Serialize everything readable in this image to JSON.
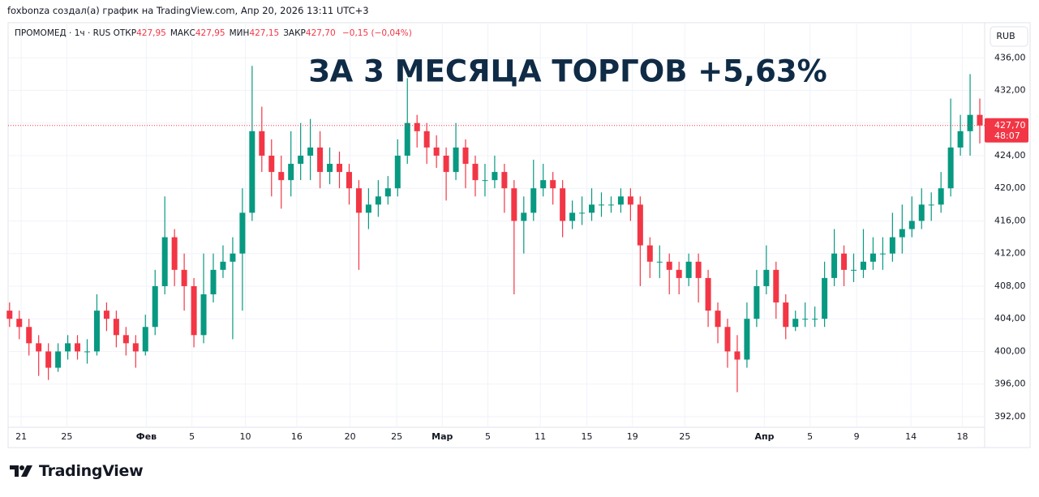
{
  "header": {
    "caption": "foxbonza создал(а) график на TradingView.com, Апр 20, 2026 13:11 UTC+3"
  },
  "chart_data": {
    "type": "candlestick",
    "title": "ЗА 3 МЕСЯЦА ТОРГОВ +5,63%",
    "symbol": "ПРОМОМЕД · 1ч · RUS",
    "ohlc_legend": [
      {
        "name": "ОТКР",
        "value": 427.95,
        "label": "427,95"
      },
      {
        "name": "МАКС",
        "value": 427.95,
        "label": "427,95"
      },
      {
        "name": "МИН",
        "value": 427.15,
        "label": "427,15"
      },
      {
        "name": "ЗАКР",
        "value": 427.7,
        "label": "427,70"
      }
    ],
    "change": {
      "value": -0.15,
      "label": "−0,15 (−0,04%)"
    },
    "currency": "RUB",
    "x": [
      0,
      1,
      2,
      3,
      4,
      5,
      6,
      7,
      8,
      9,
      10,
      11,
      12,
      13,
      14,
      15,
      16,
      17,
      18,
      19,
      20,
      21,
      22,
      23,
      24,
      25,
      26,
      27,
      28,
      29,
      30,
      31,
      32,
      33,
      34,
      35,
      36,
      37,
      38,
      39,
      40,
      41,
      42,
      43,
      44,
      45,
      46,
      47,
      48,
      49,
      50,
      51,
      52,
      53,
      54,
      55,
      56,
      57,
      58,
      59,
      60,
      61,
      62,
      63,
      64,
      65,
      66,
      67,
      68,
      69,
      70,
      71,
      72,
      73,
      74,
      75,
      76,
      77,
      78,
      79,
      80,
      81,
      82,
      83,
      84,
      85,
      86,
      87,
      88,
      89,
      90,
      91,
      92,
      93,
      94,
      95,
      96,
      97,
      98,
      99,
      100
    ],
    "open": [
      405,
      404,
      403,
      401,
      400,
      398,
      400,
      401,
      400,
      400,
      405,
      404,
      402,
      401,
      400,
      403,
      408,
      414,
      410,
      408,
      402,
      407,
      410,
      411,
      412,
      417,
      427,
      424,
      422,
      421,
      423,
      424,
      425,
      422,
      423,
      422,
      420,
      417,
      418,
      419,
      420,
      424,
      428,
      427,
      425,
      424,
      422,
      425,
      423,
      421,
      421,
      422,
      420,
      416,
      417,
      420,
      421,
      420,
      416,
      417,
      417,
      418,
      418,
      418,
      419,
      418,
      413,
      411,
      411,
      410,
      409,
      411,
      409,
      405,
      403,
      400,
      399,
      404,
      408,
      410,
      406,
      403,
      404,
      404,
      404,
      409,
      412,
      410,
      410,
      411,
      412,
      412,
      414,
      415,
      416,
      418,
      418,
      420,
      425,
      427,
      429
    ],
    "high": [
      406,
      405,
      404,
      402,
      401,
      401,
      402,
      402,
      401.5,
      407,
      406,
      405,
      403,
      402,
      404.5,
      410,
      419,
      415,
      412,
      409,
      412,
      412,
      413,
      414,
      420,
      435,
      430,
      426,
      424,
      427,
      428,
      428.5,
      427,
      425,
      424.5,
      423,
      421,
      420,
      421,
      421.5,
      426,
      433.5,
      429,
      428,
      426.5,
      425,
      428,
      426,
      424,
      423,
      424,
      423,
      421,
      419,
      423.5,
      423,
      422,
      421,
      418.5,
      419,
      420,
      419.5,
      419,
      420,
      420,
      419,
      414,
      413,
      412,
      411,
      412,
      412,
      410,
      406,
      404,
      402,
      406,
      410,
      413,
      411,
      407,
      405,
      406,
      405.5,
      411,
      415,
      413,
      412,
      415,
      414,
      414,
      417,
      418,
      419,
      420,
      419.5,
      422,
      431,
      429,
      434,
      431
    ],
    "low": [
      403,
      401.5,
      399.5,
      397,
      396.5,
      397.5,
      399,
      399,
      398.5,
      399.5,
      402.5,
      400.5,
      399.5,
      398,
      399.5,
      402,
      407,
      408,
      405,
      400.5,
      401,
      406,
      409,
      401.5,
      405,
      416,
      422,
      419,
      417.5,
      419,
      421,
      421,
      420,
      420.5,
      420,
      418,
      410,
      415,
      416.5,
      418,
      419,
      423,
      425,
      423,
      422.5,
      418.5,
      421,
      420,
      419,
      419,
      420,
      417,
      407,
      412,
      416,
      419,
      418,
      414,
      415,
      415.5,
      416,
      416.5,
      417,
      417,
      416,
      408,
      409,
      409,
      407,
      407,
      408,
      406,
      403,
      401,
      398,
      395,
      398,
      403,
      407,
      404,
      401.5,
      402.5,
      403,
      403,
      403,
      408,
      408,
      408.5,
      409,
      410,
      410,
      411,
      412,
      414,
      415,
      416,
      417,
      419,
      424,
      424,
      425.5
    ],
    "close": [
      404,
      403,
      401,
      400,
      398,
      400,
      401,
      400,
      400,
      405,
      404,
      402,
      401,
      400,
      403,
      408,
      414,
      410,
      408,
      402,
      407,
      410,
      411,
      412,
      417,
      427,
      424,
      422,
      421,
      423,
      424,
      425,
      422,
      423,
      422,
      420,
      417,
      418,
      419,
      420,
      424,
      428,
      427,
      425,
      424,
      422,
      425,
      423,
      421,
      421,
      422,
      420,
      416,
      417,
      420,
      421,
      420,
      416,
      417,
      417,
      418,
      418,
      418,
      419,
      418,
      413,
      411,
      411,
      410,
      409,
      411,
      409,
      405,
      403,
      400,
      399,
      404,
      408,
      410,
      406,
      403,
      404,
      404,
      404,
      409,
      412,
      410,
      410,
      411,
      412,
      412,
      414,
      415,
      416,
      418,
      418,
      420,
      425,
      427,
      429,
      427.7
    ],
    "up_color": "#089981",
    "down_color": "#f23645",
    "xlim": [
      -0.15,
      100.5
    ],
    "xticks": [
      {
        "value": 1.2,
        "label": "21"
      },
      {
        "value": 5.9,
        "label": "25"
      },
      {
        "value": 14.1,
        "label": "Фев"
      },
      {
        "value": 18.8,
        "label": "5"
      },
      {
        "value": 24.3,
        "label": "10"
      },
      {
        "value": 29.6,
        "label": "16"
      },
      {
        "value": 35.1,
        "label": "20"
      },
      {
        "value": 39.9,
        "label": "25"
      },
      {
        "value": 44.6,
        "label": "Мар"
      },
      {
        "value": 49.3,
        "label": "5"
      },
      {
        "value": 54.7,
        "label": "11"
      },
      {
        "value": 59.5,
        "label": "15"
      },
      {
        "value": 64.2,
        "label": "19"
      },
      {
        "value": 69.6,
        "label": "25"
      },
      {
        "value": 77.8,
        "label": "Апр"
      },
      {
        "value": 82.5,
        "label": "5"
      },
      {
        "value": 87.3,
        "label": "9"
      },
      {
        "value": 92.9,
        "label": "14"
      },
      {
        "value": 98.2,
        "label": "18"
      }
    ],
    "ylim": [
      390.9,
      440.1
    ],
    "yticks": [
      {
        "value": 392,
        "label": "392,00"
      },
      {
        "value": 396,
        "label": "396,00"
      },
      {
        "value": 400,
        "label": "400,00"
      },
      {
        "value": 404,
        "label": "404,00"
      },
      {
        "value": 408,
        "label": "408,00"
      },
      {
        "value": 412,
        "label": "412,00"
      },
      {
        "value": 416,
        "label": "416,00"
      },
      {
        "value": 420,
        "label": "420,00"
      },
      {
        "value": 424,
        "label": "424,00"
      },
      {
        "value": 428,
        "label": "428,00"
      },
      {
        "value": 432,
        "label": "432,00"
      },
      {
        "value": 436,
        "label": "436,00"
      }
    ],
    "last_price": {
      "value": 427.7,
      "label": "427,70"
    },
    "countdown": "48:07",
    "grid": true
  },
  "footer": {
    "brand": "TradingView"
  }
}
